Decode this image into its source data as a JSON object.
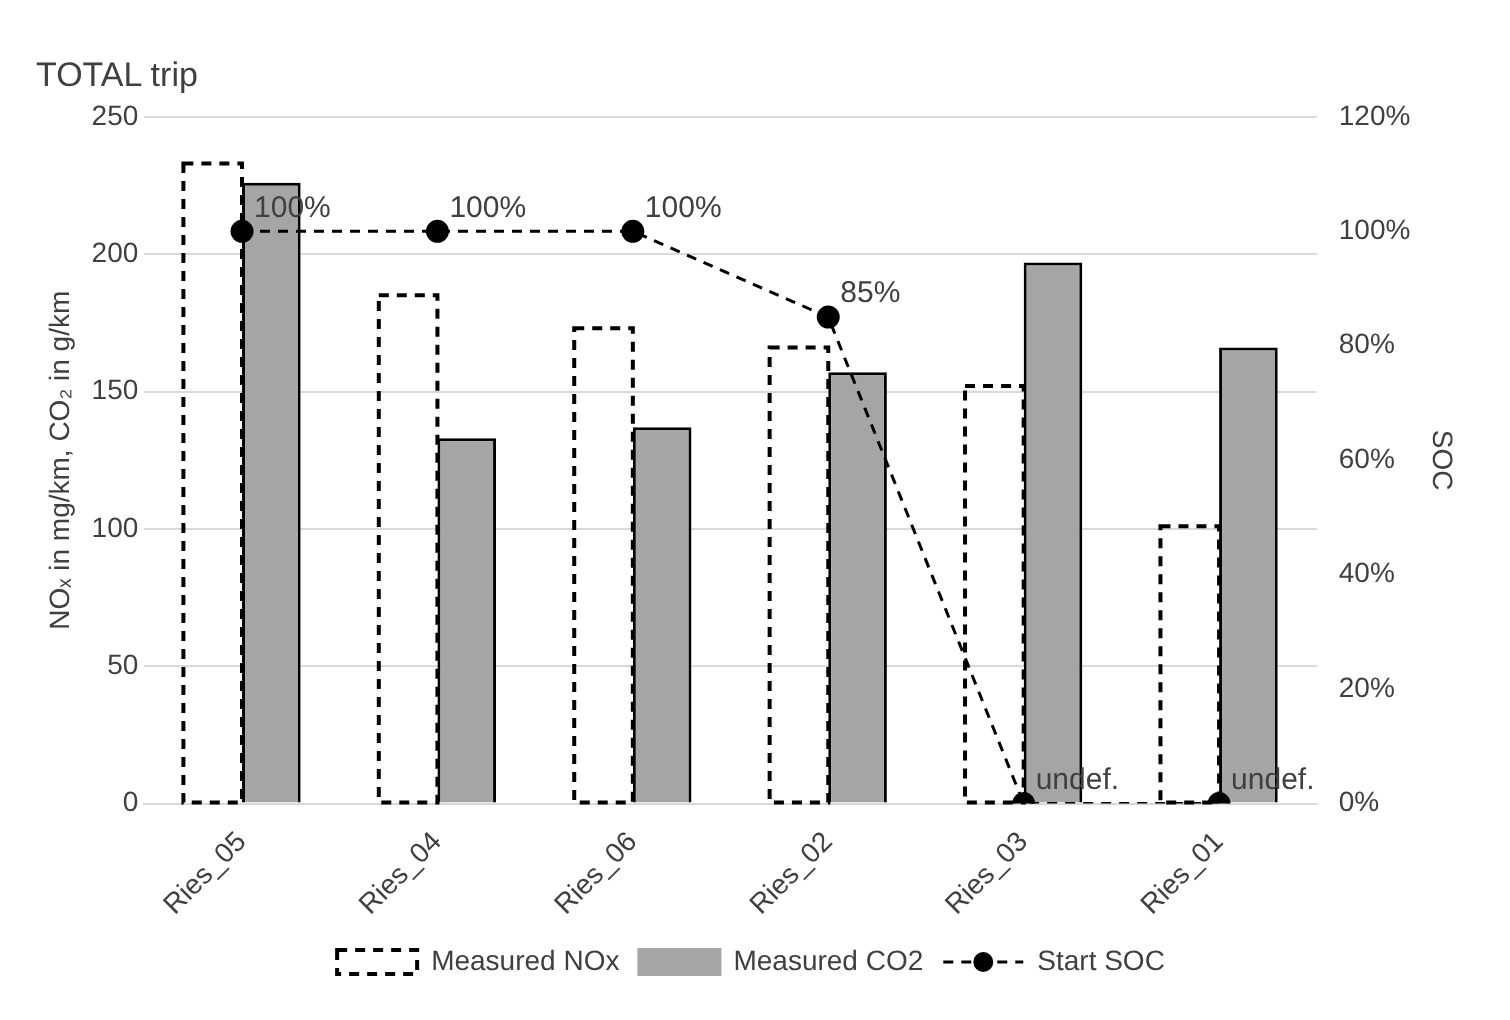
{
  "chart_data": {
    "type": "bar",
    "title": "TOTAL trip",
    "ylabel": "NOₓ in mg/km, CO₂ in g/km",
    "y2label": "SOC",
    "categories": [
      "Ries_05",
      "Ries_04",
      "Ries_06",
      "Ries_02",
      "Ries_03",
      "Ries_01"
    ],
    "series": [
      {
        "name": "Measured NOx",
        "color": "#000000",
        "line_style": "dashed",
        "values": [
          233,
          185,
          173,
          166,
          152,
          101
        ]
      },
      {
        "name": "Measured CO2",
        "color": "#a5a5a5",
        "values": [
          226,
          133,
          137,
          157,
          197,
          166
        ]
      },
      {
        "name": "Start SOC",
        "type": "line",
        "axis": "y2",
        "color": "#000000",
        "line_style": "dashed",
        "marker": "circle",
        "values": [
          100,
          100,
          100,
          85,
          0,
          0
        ],
        "value_labels": [
          "100%",
          "100%",
          "100%",
          "85%",
          "undef.",
          "undef."
        ]
      }
    ],
    "ylim": [
      0,
      250
    ],
    "yticks": [
      0,
      50,
      100,
      150,
      200,
      250
    ],
    "y2lim": [
      0,
      120
    ],
    "y2ticks": [
      {
        "value": 0,
        "label": "0%"
      },
      {
        "value": 20,
        "label": "20%"
      },
      {
        "value": 40,
        "label": "40%"
      },
      {
        "value": 60,
        "label": "60%"
      },
      {
        "value": 80,
        "label": "80%"
      },
      {
        "value": 100,
        "label": "100%"
      },
      {
        "value": 120,
        "label": "120%"
      }
    ],
    "grid": "y",
    "legend": "bottom"
  }
}
